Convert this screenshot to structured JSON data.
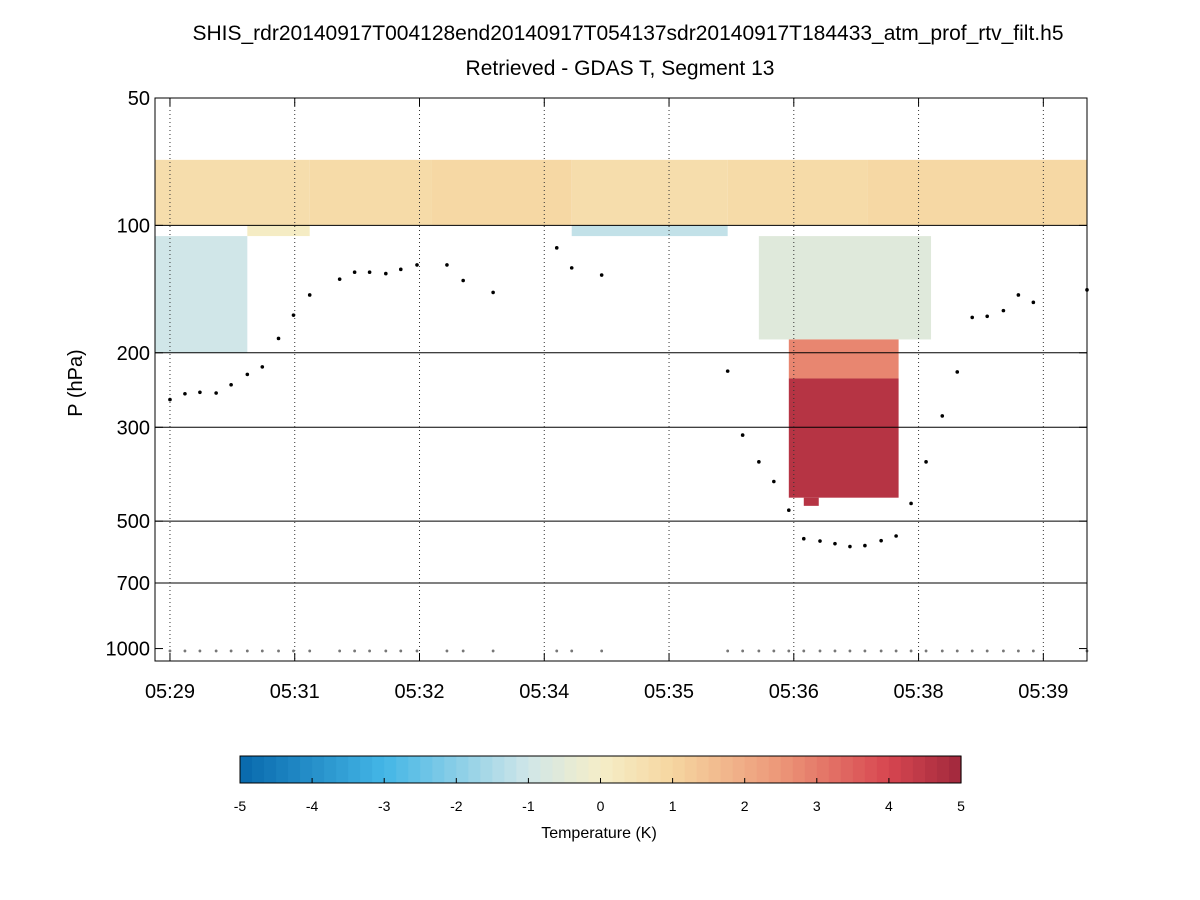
{
  "chart_data": {
    "type": "heatmap",
    "title_line1": "SHIS_rdr20140917T004128end20140917T054137sdr20140917T184433_atm_prof_rtv_filt.h5",
    "title_line2": "Retrieved - GDAS T, Segment 13",
    "ylabel": "P (hPa)",
    "y_scale": "log",
    "y_reversed": true,
    "ylim": [
      50,
      1070
    ],
    "y_ticks": [
      50,
      100,
      200,
      300,
      500,
      700,
      1000
    ],
    "y_tick_labels": [
      "50",
      "100",
      "200",
      "300",
      "500",
      "700",
      "1000"
    ],
    "y_gridlines": [
      100,
      200,
      300,
      500,
      700
    ],
    "xlim": [
      -0.12,
      7.35
    ],
    "x_ticks": [
      0,
      1,
      2,
      3,
      4,
      5,
      6,
      7
    ],
    "x_tick_labels": [
      "05:29",
      "05:31",
      "05:32",
      "05:34",
      "05:35",
      "05:36",
      "05:38",
      "05:39"
    ],
    "colorbar": {
      "label": "Temperature (K)",
      "min": -5,
      "max": 5,
      "ticks": [
        -5,
        -4,
        -3,
        -2,
        -1,
        0,
        1,
        2,
        3,
        4,
        5
      ],
      "tick_labels": [
        "-5",
        "-4",
        "-3",
        "-2",
        "-1",
        "0",
        "1",
        "2",
        "3",
        "4",
        "5"
      ],
      "colormap": "blue-white-red (RdYlBu reversed)"
    },
    "column_width": 0.122,
    "column_x": [
      0.0,
      2.22,
      3.02,
      4.47,
      5.1,
      5.28,
      6.1
    ],
    "column_p_top": [
      70,
      70,
      70,
      70,
      70,
      70,
      70
    ],
    "column_p_bottom": [
      100,
      100,
      100,
      100,
      100,
      100,
      100
    ],
    "blocks": [
      {
        "x0": -0.12,
        "x1": 1.12,
        "p0": 70,
        "p1": 100,
        "value": 0.7
      },
      {
        "x0": 1.12,
        "x1": 2.1,
        "p0": 70,
        "p1": 100,
        "value": 0.8
      },
      {
        "x0": 2.1,
        "x1": 3.22,
        "p0": 70,
        "p1": 100,
        "value": 0.9
      },
      {
        "x0": 3.22,
        "x1": 4.47,
        "p0": 70,
        "p1": 100,
        "value": 0.7
      },
      {
        "x0": 4.47,
        "x1": 5.59,
        "p0": 70,
        "p1": 100,
        "value": 0.8
      },
      {
        "x0": 5.59,
        "x1": 7.35,
        "p0": 70,
        "p1": 100,
        "value": 0.9
      },
      {
        "x0": -0.12,
        "x1": 0.62,
        "p0": 106,
        "p1": 200,
        "value": -1.0
      },
      {
        "x0": 0.62,
        "x1": 1.12,
        "p0": 100,
        "p1": 106,
        "value": 0.1
      },
      {
        "x0": 3.22,
        "x1": 4.47,
        "p0": 100,
        "p1": 106,
        "value": -1.2
      },
      {
        "x0": 4.72,
        "x1": 6.1,
        "p0": 106,
        "p1": 186,
        "value": -0.6
      },
      {
        "x0": 4.96,
        "x1": 5.84,
        "p0": 186,
        "p1": 230,
        "value": 2.8
      },
      {
        "x0": 4.96,
        "x1": 5.84,
        "p0": 230,
        "p1": 440,
        "value": 4.6
      },
      {
        "x0": 5.08,
        "x1": 5.2,
        "p0": 440,
        "p1": 460,
        "value": 4.6
      }
    ],
    "series": [
      {
        "name": "upper profile markers",
        "x": [
          0.0,
          0.12,
          0.24,
          0.37,
          0.49,
          0.62,
          0.74,
          0.87,
          0.99,
          1.12,
          1.36,
          1.48,
          1.6,
          1.73,
          1.85,
          1.98,
          2.22,
          2.35,
          2.59,
          3.1,
          3.22,
          3.46,
          4.47,
          4.59,
          4.72,
          4.84,
          4.96,
          5.08,
          5.21,
          5.33,
          5.45,
          5.57,
          5.7,
          5.82,
          5.94,
          6.06,
          6.19,
          6.31,
          6.43,
          6.55,
          6.68,
          6.8,
          6.92,
          7.35
        ],
        "y": [
          258,
          250,
          248,
          249,
          238,
          225,
          216,
          185,
          163,
          146,
          134,
          129,
          129,
          130,
          127,
          124,
          124,
          135,
          144,
          113,
          126,
          131,
          221,
          313,
          362,
          403,
          471,
          550,
          557,
          565,
          574,
          571,
          556,
          542,
          454,
          362,
          282,
          222,
          165,
          164,
          159,
          146,
          152,
          142
        ]
      },
      {
        "name": "surface pressure markers",
        "x": [
          0.0,
          0.12,
          0.24,
          0.37,
          0.49,
          0.62,
          0.74,
          0.87,
          0.99,
          1.12,
          1.36,
          1.48,
          1.6,
          1.73,
          1.85,
          1.98,
          2.22,
          2.35,
          2.59,
          3.1,
          3.22,
          3.46,
          4.47,
          4.59,
          4.72,
          4.84,
          4.96,
          5.08,
          5.21,
          5.33,
          5.45,
          5.57,
          5.7,
          5.82,
          5.94,
          6.06,
          6.19,
          6.31,
          6.43,
          6.55,
          6.68,
          6.8,
          6.92,
          7.35
        ],
        "y": [
          1013,
          1013,
          1013,
          1013,
          1013,
          1013,
          1013,
          1013,
          1013,
          1013,
          1013,
          1013,
          1013,
          1013,
          1013,
          1013,
          1013,
          1013,
          1013,
          1013,
          1013,
          1013,
          1013,
          1013,
          1013,
          1013,
          1013,
          1013,
          1013,
          1013,
          1013,
          1013,
          1013,
          1013,
          1013,
          1013,
          1013,
          1013,
          1013,
          1013,
          1013,
          1013,
          1013,
          1013
        ]
      }
    ]
  }
}
